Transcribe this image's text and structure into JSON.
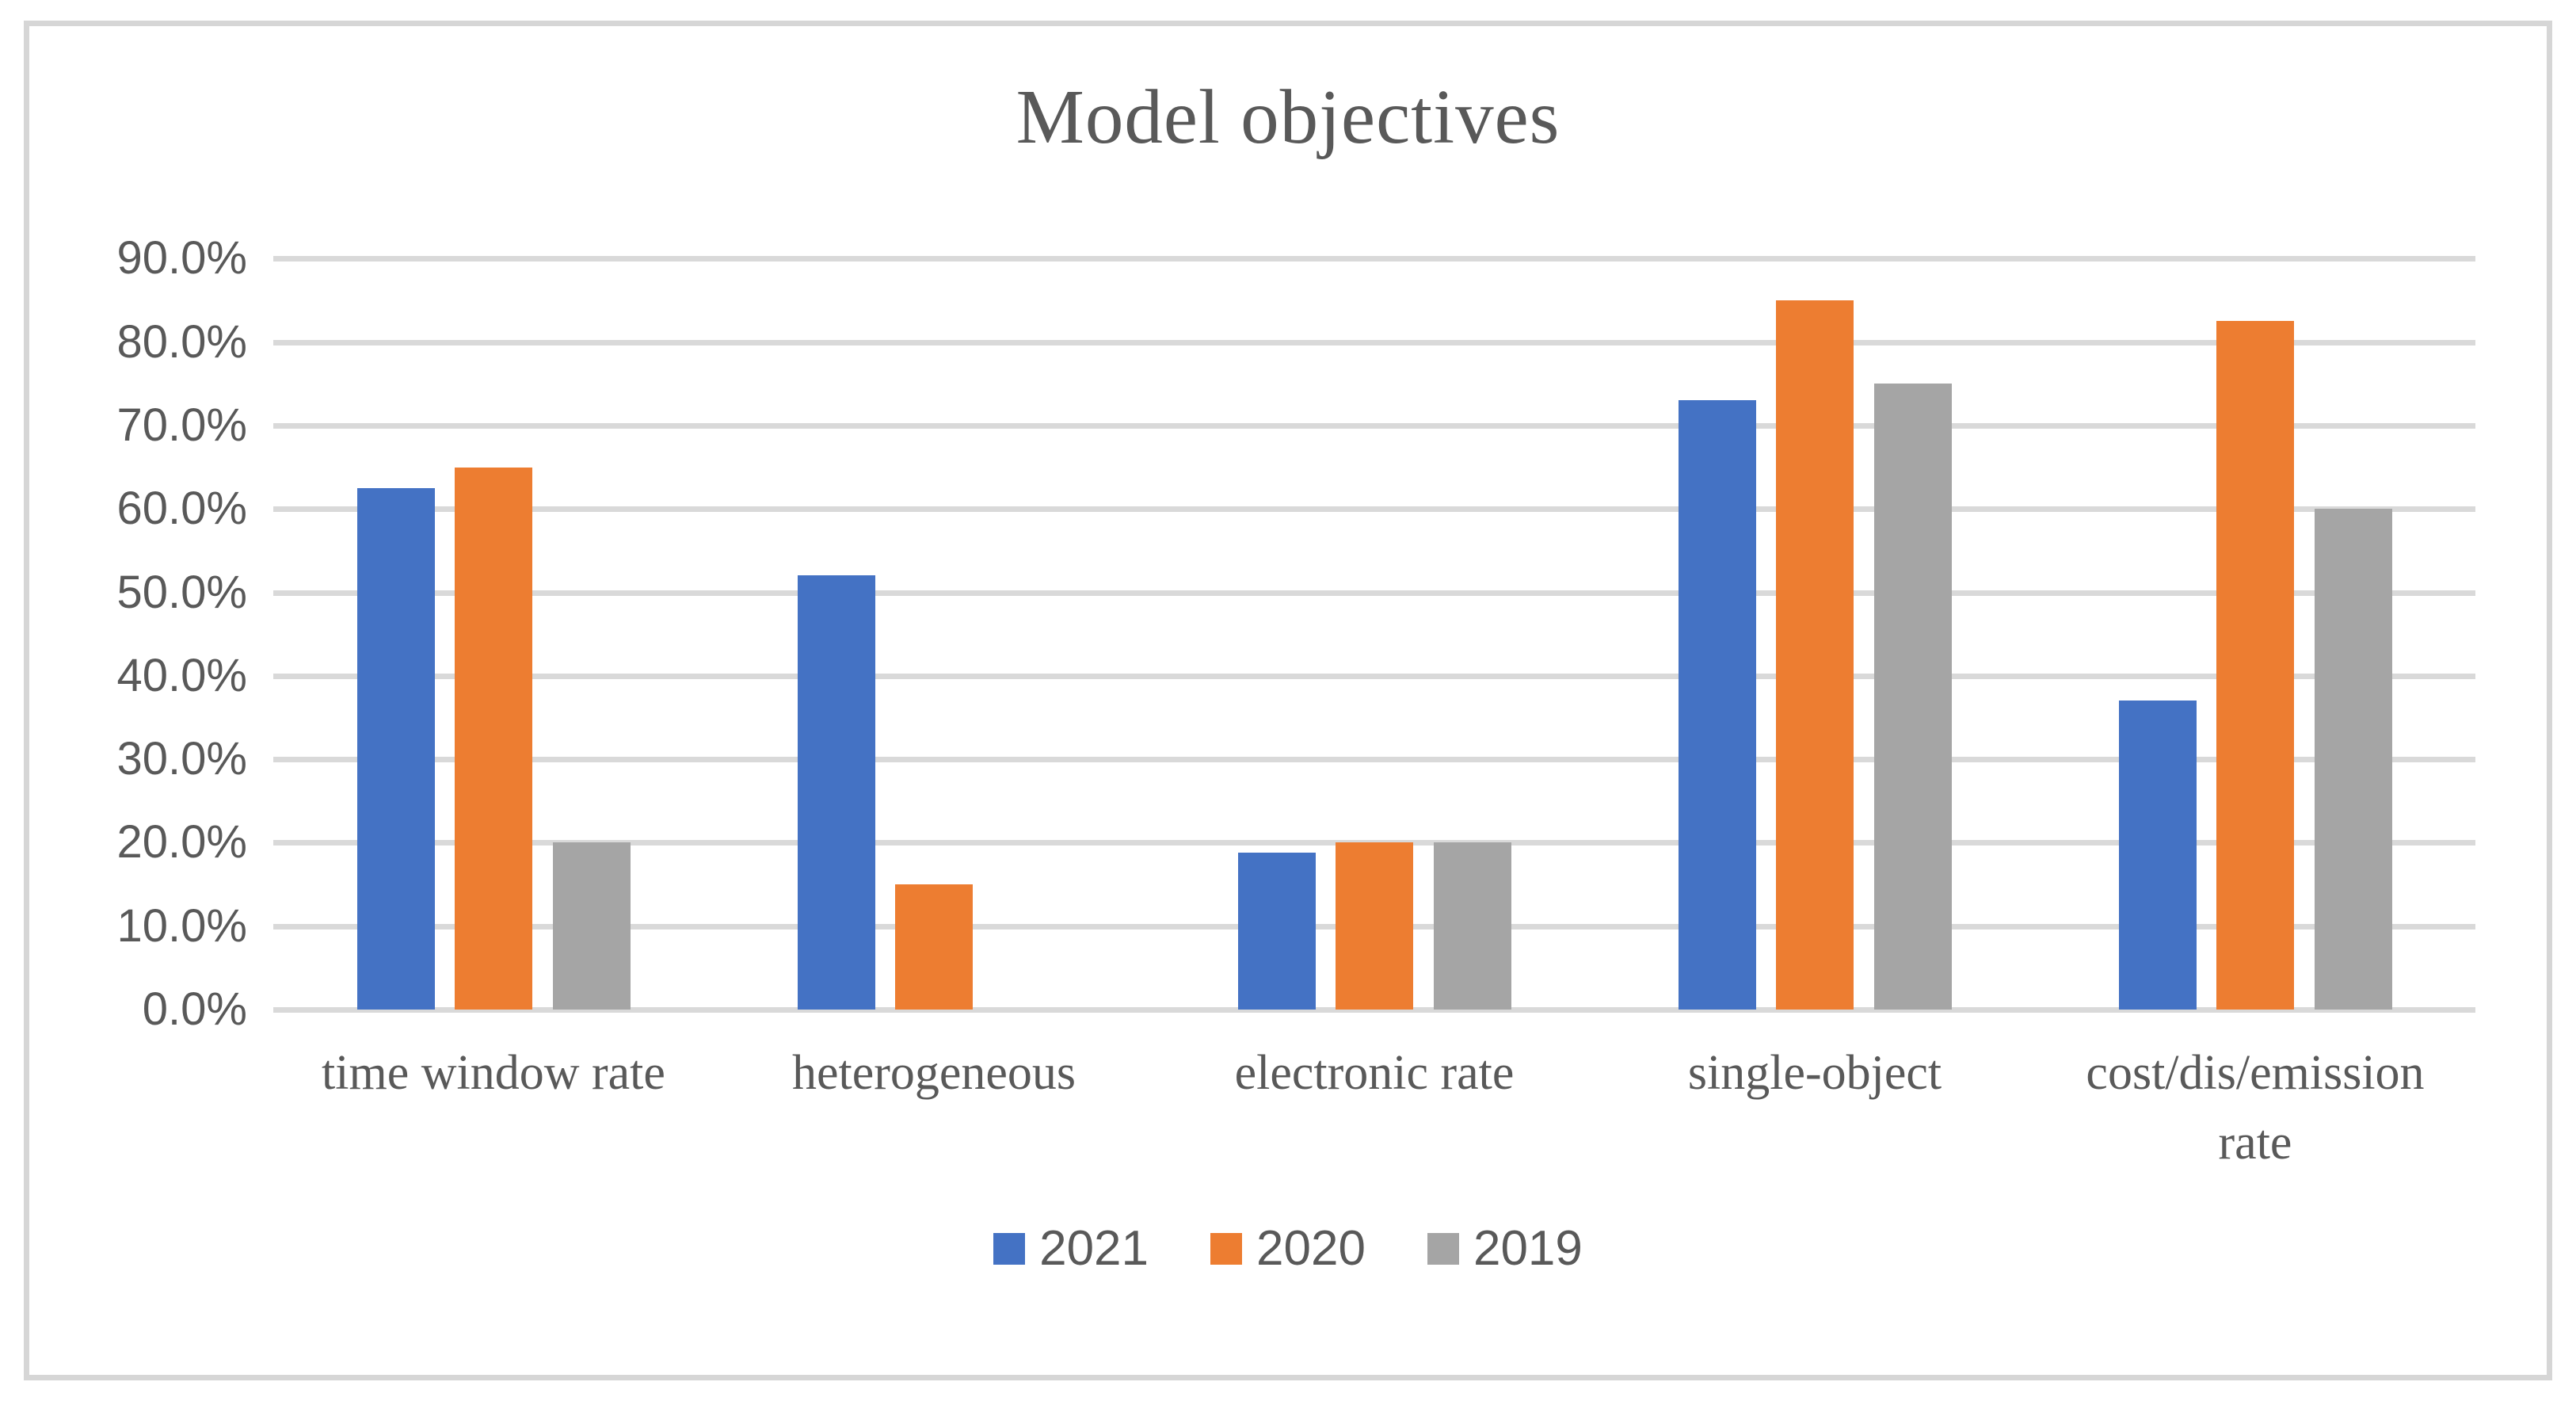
{
  "figure": {
    "background": "#ffffff",
    "border_color": "#d6d6d6",
    "text_color": "#595959",
    "gridline_color": "#d9d9d9"
  },
  "chart_data": {
    "type": "bar",
    "title": "Model objectives",
    "xlabel": "",
    "ylabel": "",
    "categories": [
      "time window rate",
      "heterogeneous",
      "electronic rate",
      "single-object",
      "cost/dis/emission rate"
    ],
    "series": [
      {
        "name": "2021",
        "color": "#4472C4",
        "values": [
          62.5,
          52.0,
          18.8,
          73.0,
          37.0
        ]
      },
      {
        "name": "2020",
        "color": "#ED7D31",
        "values": [
          65.0,
          15.0,
          20.0,
          85.0,
          82.5
        ]
      },
      {
        "name": "2019",
        "color": "#A5A5A5",
        "values": [
          20.0,
          0.0,
          20.0,
          75.0,
          60.0
        ]
      }
    ],
    "ylim": [
      0,
      90
    ],
    "ytick_step": 10,
    "ytick_labels": [
      "0.0%",
      "10.0%",
      "20.0%",
      "30.0%",
      "40.0%",
      "50.0%",
      "60.0%",
      "70.0%",
      "80.0%",
      "90.0%"
    ],
    "grid": true,
    "legend_position": "bottom",
    "legend_labels": [
      "2021",
      "2020",
      "2019"
    ]
  }
}
